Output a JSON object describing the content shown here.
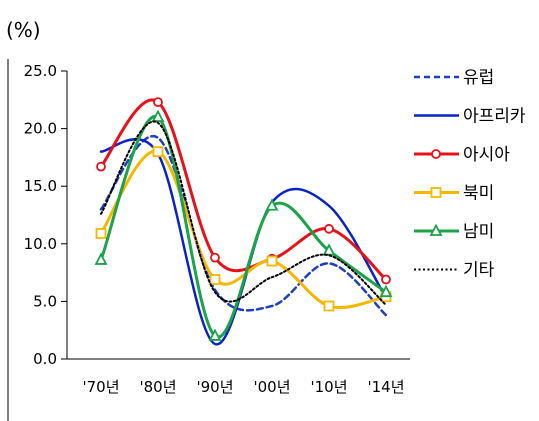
{
  "chart_data": {
    "type": "line",
    "unit_label": "(%)",
    "categories": [
      "'70년",
      "'80년",
      "'90년",
      "'00년",
      "'10년",
      "'14년"
    ],
    "ylim": [
      0,
      25
    ],
    "yticks": [
      "25.0",
      "20.0",
      "15.0",
      "10.0",
      "5.0",
      "0.0"
    ],
    "ytick_values": [
      25,
      20,
      15,
      10,
      5,
      0
    ],
    "grid": false,
    "legend_position": "right",
    "series": [
      {
        "name": "유럽",
        "values": [
          13.0,
          19.2,
          6.0,
          4.6,
          8.3,
          3.8
        ],
        "color": "#1f3fbf",
        "dash": "6,4",
        "marker": "none",
        "width": 2.5
      },
      {
        "name": "아프리카",
        "values": [
          18.0,
          17.8,
          1.3,
          13.6,
          13.3,
          5.3
        ],
        "color": "#0a22c8",
        "dash": "",
        "marker": "none",
        "width": 2.5
      },
      {
        "name": "아시아",
        "values": [
          16.7,
          22.3,
          8.8,
          8.7,
          11.3,
          6.9
        ],
        "color": "#e8111a",
        "dash": "",
        "marker": "circle",
        "width": 3
      },
      {
        "name": "북미",
        "values": [
          10.9,
          18.0,
          6.9,
          8.5,
          4.6,
          5.4
        ],
        "color": "#f5b700",
        "dash": "",
        "marker": "square",
        "width": 3
      },
      {
        "name": "남미",
        "values": [
          8.6,
          21.0,
          2.0,
          13.3,
          9.4,
          5.8
        ],
        "color": "#1ba34a",
        "dash": "",
        "marker": "triangle",
        "width": 3
      },
      {
        "name": "기타",
        "values": [
          12.6,
          20.5,
          5.8,
          7.1,
          9.0,
          4.7
        ],
        "color": "#000000",
        "dash": "2,2.5",
        "marker": "none",
        "width": 2
      }
    ]
  }
}
